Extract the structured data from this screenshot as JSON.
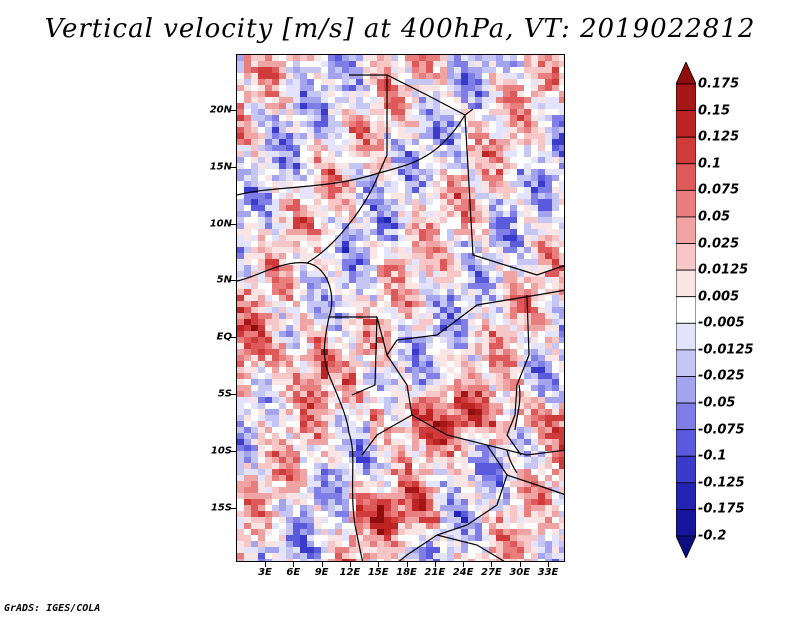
{
  "title": "Vertical velocity [m/s] at 400hPa, VT: 2019022812",
  "credit": "GrADS: IGES/COLA",
  "map": {
    "lat_labels": [
      "20N",
      "15N",
      "10N",
      "5N",
      "EQ",
      "5S",
      "10S",
      "15S"
    ],
    "lon_labels": [
      "3E",
      "6E",
      "9E",
      "12E",
      "15E",
      "18E",
      "21E",
      "24E",
      "27E",
      "30E",
      "33E"
    ]
  },
  "colorbar": {
    "labels": [
      "0.175",
      "0.15",
      "0.125",
      "0.1",
      "0.075",
      "0.05",
      "0.025",
      "0.0125",
      "0.005",
      "-0.005",
      "-0.0125",
      "-0.025",
      "-0.05",
      "-0.075",
      "-0.1",
      "-0.125",
      "-0.175",
      "-0.2"
    ],
    "colors": [
      "#8f0d0d",
      "#a51616",
      "#bc2424",
      "#cf3a3a",
      "#de5a5a",
      "#e87e7e",
      "#f0a3a3",
      "#f7c6c6",
      "#fbe4e4",
      "#ffffff",
      "#e3e3fb",
      "#c6c6f5",
      "#a3a3ee",
      "#7e7ee6",
      "#5a5adc",
      "#3a3acb",
      "#2424b4",
      "#16169c",
      "#0d0d80"
    ]
  }
}
